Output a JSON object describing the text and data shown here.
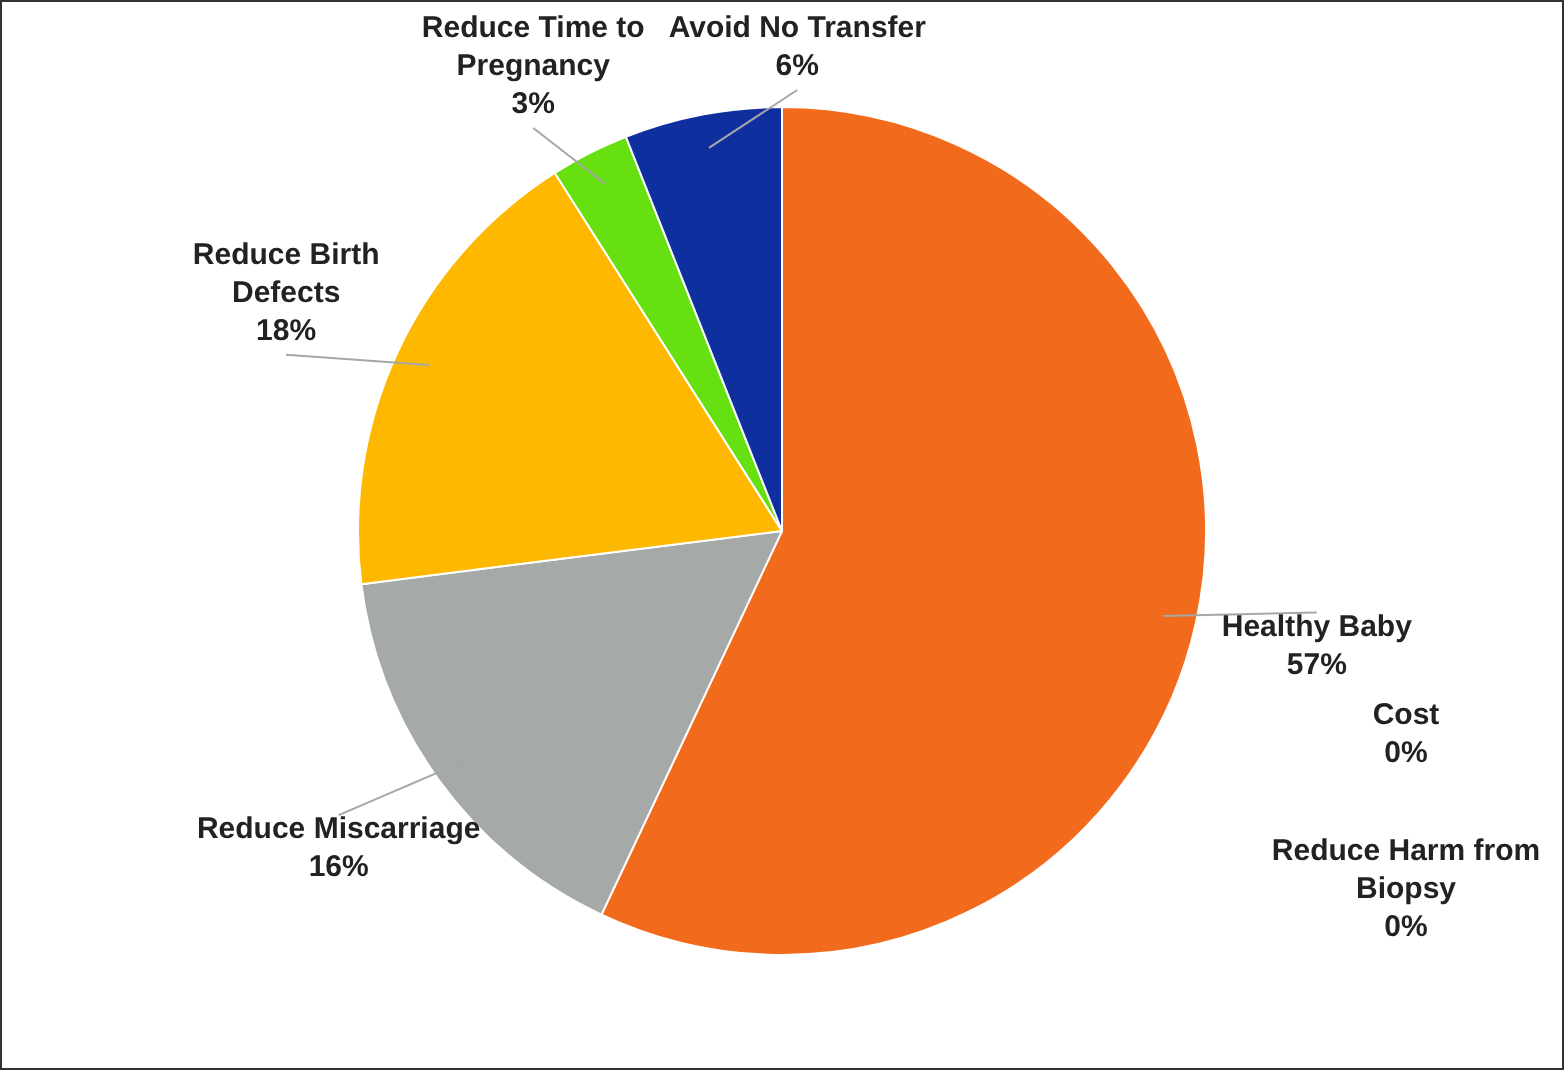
{
  "chart_data": {
    "type": "pie",
    "categories": [
      "Healthy Baby",
      "Cost",
      "Reduce Harm from Biopsy",
      "Reduce Miscarriage",
      "Reduce Birth Defects",
      "Reduce Time to Pregnancy",
      "Avoid No Transfer"
    ],
    "values": [
      57,
      0,
      0,
      16,
      18,
      3,
      6
    ],
    "colors": [
      "#f26a1b",
      "#7f7f7f",
      "#5b9bd5",
      "#a5a9a8",
      "#ffb800",
      "#66e011",
      "#0f2f9f"
    ],
    "value_labels": [
      "57%",
      "0%",
      "0%",
      "16%",
      "18%",
      "3%",
      "6%"
    ]
  }
}
